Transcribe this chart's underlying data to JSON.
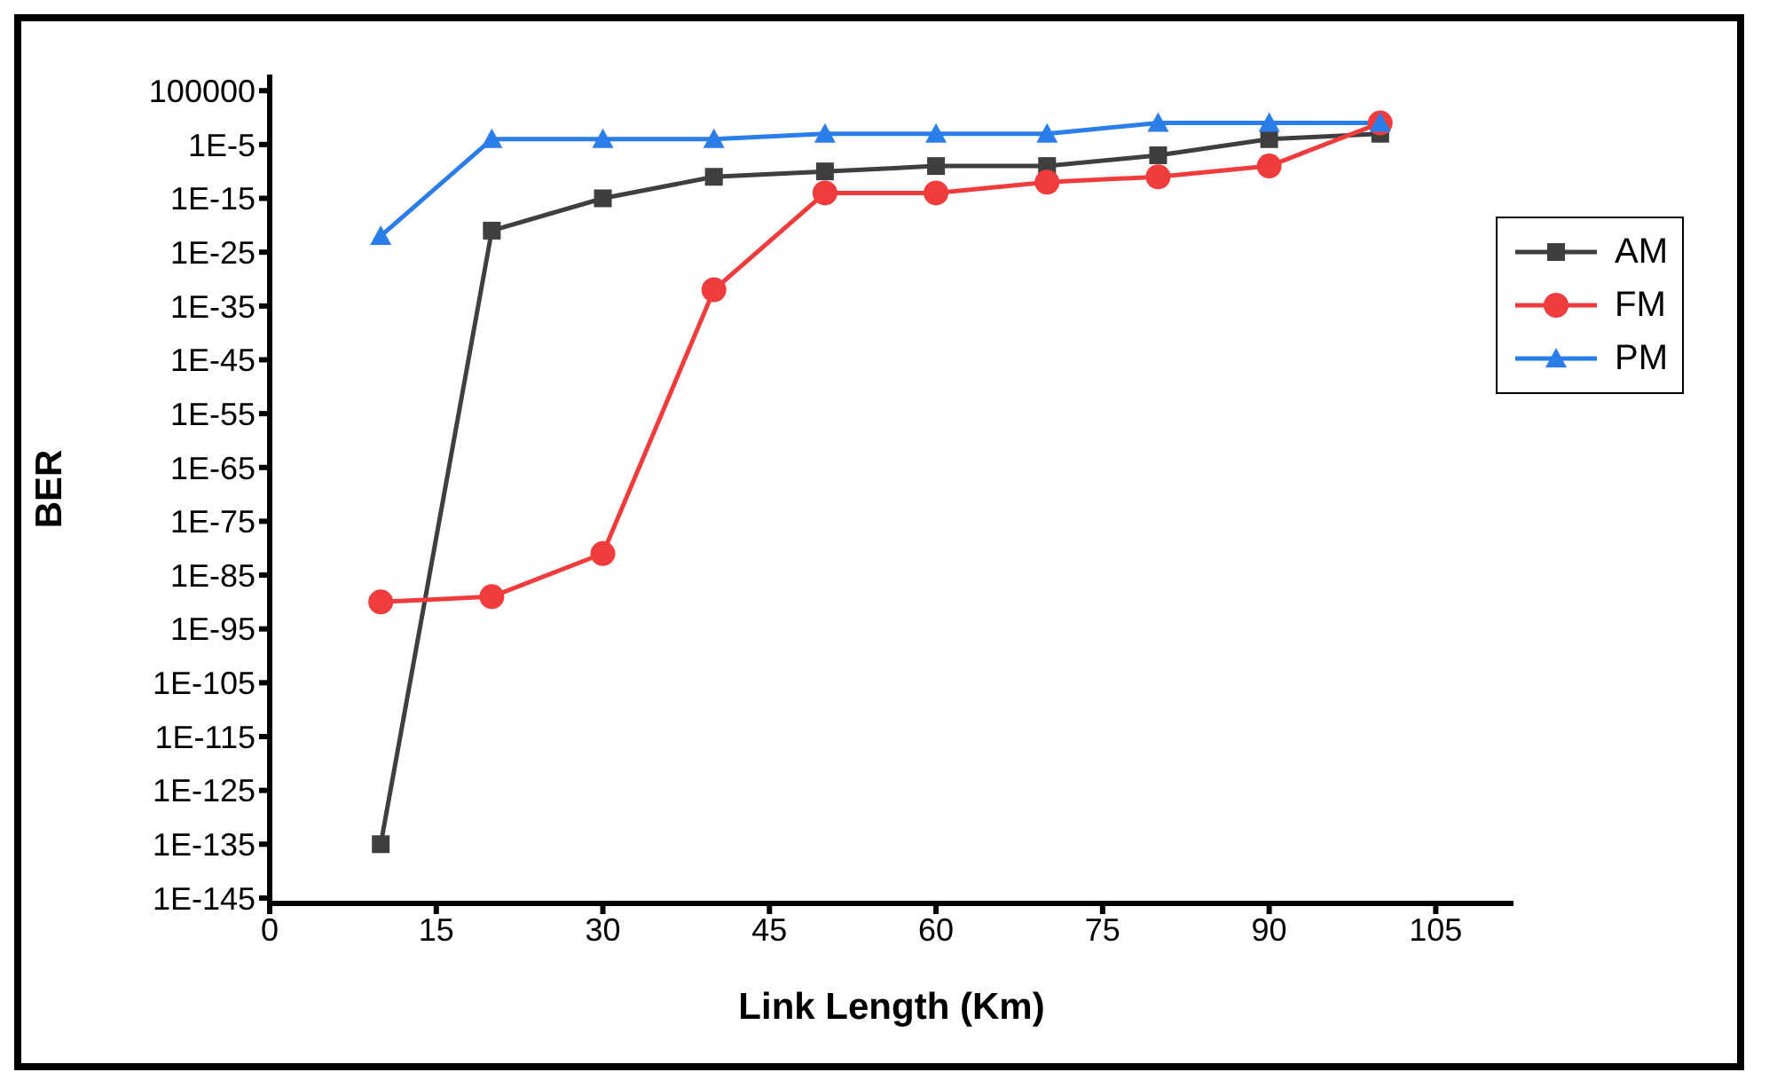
{
  "chart_data": {
    "type": "line",
    "xlabel": "Link Length (Km)",
    "ylabel": "BER",
    "log": "y",
    "grid": false,
    "legend": "top right",
    "line_style": "solid",
    "x": [
      10,
      20,
      30,
      40,
      50,
      60,
      70,
      80,
      90,
      100
    ],
    "series": [
      {
        "name": "AM",
        "color": "#3f3f3f",
        "marker": "square",
        "values": [
          1e-135,
          1e-21,
          1e-15,
          1e-11,
          1e-10,
          1e-09,
          1e-09,
          1e-07,
          0.0001,
          0.001
        ]
      },
      {
        "name": "FM",
        "color": "#f03c3c",
        "marker": "circle",
        "values": [
          1e-90,
          1e-89,
          1e-81,
          1e-32,
          1e-14,
          1e-14,
          1e-12,
          1e-11,
          1e-09,
          0.1
        ]
      },
      {
        "name": "PM",
        "color": "#2b7de9",
        "marker": "triangle",
        "values": [
          1e-22,
          0.0001,
          0.0001,
          0.0001,
          0.001,
          0.001,
          0.001,
          0.1,
          0.1,
          0.1
        ]
      }
    ],
    "xlim": [
      0,
      112
    ],
    "xticks": [
      0,
      15,
      30,
      45,
      60,
      75,
      90,
      105
    ],
    "ylim": [
      1e-146,
      100000000.0
    ],
    "yticks": [
      100000,
      {
        "value": 1e-05,
        "label": "1E-5"
      },
      {
        "value": 1e-15,
        "label": "1E-15"
      },
      {
        "value": 1e-25,
        "label": "1E-25"
      },
      {
        "value": 1e-35,
        "label": "1E-35"
      },
      {
        "value": 1e-45,
        "label": "1E-45"
      },
      {
        "value": 1e-55,
        "label": "1E-55"
      },
      {
        "value": 1e-65,
        "label": "1E-65"
      },
      {
        "value": 1e-75,
        "label": "1E-75"
      },
      {
        "value": 1e-85,
        "label": "1E-85"
      },
      {
        "value": 1e-95,
        "label": "1E-95"
      },
      {
        "value": 1e-105,
        "label": "1E-105"
      },
      {
        "value": 1e-115,
        "label": "1E-115"
      },
      {
        "value": 1e-125,
        "label": "1E-125"
      },
      {
        "value": 1e-135,
        "label": "1E-135"
      },
      {
        "value": 1e-145,
        "label": "1E-145"
      }
    ]
  }
}
